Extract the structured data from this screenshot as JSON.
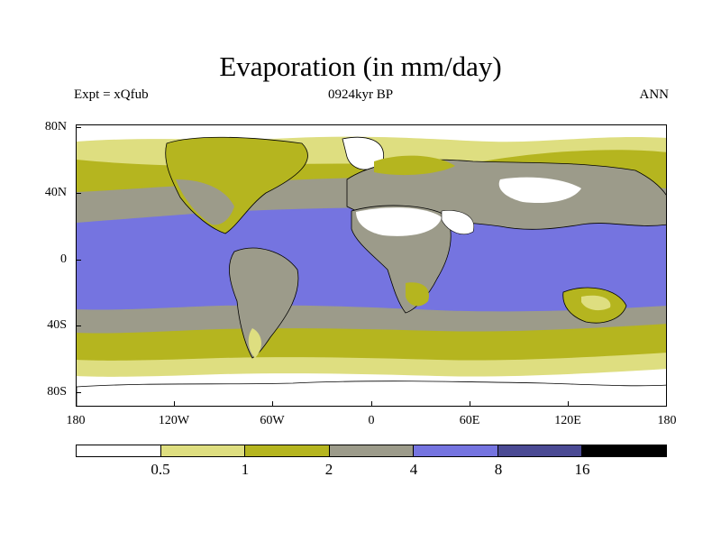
{
  "title": "Evaporation (in mm/day)",
  "subtitle_left": "Expt = xQfub",
  "subtitle_center": "0924kyr BP",
  "subtitle_right": "ANN",
  "lat_labels": [
    "80N",
    "40N",
    "0",
    "40S",
    "80S"
  ],
  "lon_labels": [
    "180",
    "120W",
    "60W",
    "0",
    "60E",
    "120E",
    "180"
  ],
  "colorbar": {
    "colors": [
      "#ffffff",
      "#dede80",
      "#b5b51f",
      "#9c9b8a",
      "#7574e0",
      "#4b4a94",
      "#000000"
    ],
    "level_labels": [
      "0.5",
      "1",
      "2",
      "4",
      "8",
      "16"
    ]
  },
  "legend": {
    "unit": "mm/day"
  }
}
